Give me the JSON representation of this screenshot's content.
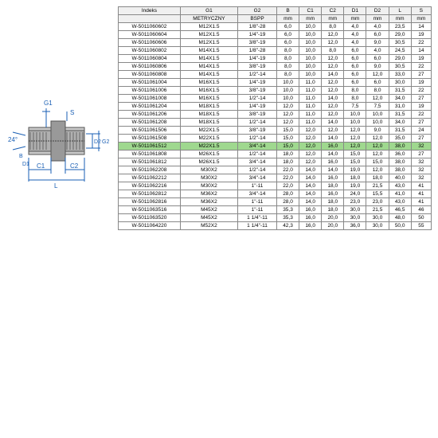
{
  "table": {
    "headers": [
      "Indeks",
      "G1",
      "G2",
      "B",
      "C1",
      "C2",
      "D1",
      "D2",
      "L",
      "S"
    ],
    "subheaders": [
      "",
      "METRYCZNY",
      "BSPP",
      "mm",
      "mm",
      "mm",
      "mm",
      "mm",
      "mm",
      "mm"
    ],
    "highlight_index": 15,
    "rows": [
      [
        "W-5011060602",
        "M12X1.5",
        "1/8\"-28",
        "6,0",
        "10,0",
        "8,0",
        "4,0",
        "4,0",
        "23,5",
        "14"
      ],
      [
        "W-5011060604",
        "M12X1.5",
        "1/4\"-19",
        "6,0",
        "10,0",
        "12,0",
        "4,0",
        "6,0",
        "29,0",
        "19"
      ],
      [
        "W-5011060606",
        "M12X1.5",
        "3/8\"-19",
        "6,0",
        "10,0",
        "12,0",
        "4,0",
        "9,0",
        "30,5",
        "22"
      ],
      [
        "W-5011060802",
        "M14X1.5",
        "1/8\"-28",
        "8,0",
        "10,0",
        "8,0",
        "6,0",
        "4,0",
        "24,5",
        "14"
      ],
      [
        "W-5011060804",
        "M14X1.5",
        "1/4\"-19",
        "8,0",
        "10,0",
        "12,0",
        "6,0",
        "6,0",
        "29,0",
        "19"
      ],
      [
        "W-5011060806",
        "M14X1.5",
        "3/8\"-19",
        "8,0",
        "10,0",
        "12,0",
        "6,0",
        "9,0",
        "30,5",
        "22"
      ],
      [
        "W-5011060808",
        "M14X1.5",
        "1/2\"-14",
        "8,0",
        "10,0",
        "14,0",
        "6,0",
        "12,0",
        "33,0",
        "27"
      ],
      [
        "W-5011061004",
        "M16X1.5",
        "1/4\"-19",
        "10,0",
        "11,0",
        "12,0",
        "6,0",
        "6,0",
        "30,0",
        "19"
      ],
      [
        "W-5011061006",
        "M16X1.5",
        "3/8\"-19",
        "10,0",
        "11,0",
        "12,0",
        "8,0",
        "8,0",
        "31,5",
        "22"
      ],
      [
        "W-5011061008",
        "M16X1.5",
        "1/2\"-14",
        "10,0",
        "11,0",
        "14,0",
        "8,0",
        "12,0",
        "34,0",
        "27"
      ],
      [
        "W-5011061204",
        "M18X1.5",
        "1/4\"-19",
        "12,0",
        "11,0",
        "12,0",
        "7,5",
        "7,5",
        "31,0",
        "19"
      ],
      [
        "W-5011061206",
        "M18X1.5",
        "3/8\"-19",
        "12,0",
        "11,0",
        "12,0",
        "10,0",
        "10,0",
        "31,5",
        "22"
      ],
      [
        "W-5011061208",
        "M18X1.5",
        "1/2\"-14",
        "12,0",
        "11,0",
        "14,0",
        "10,0",
        "10,0",
        "34,0",
        "27"
      ],
      [
        "W-5011061506",
        "M22X1.5",
        "3/8\"-19",
        "15,0",
        "12,0",
        "12,0",
        "12,0",
        "9,0",
        "31,5",
        "24"
      ],
      [
        "W-5011061508",
        "M22X1.5",
        "1/2\"-14",
        "15,0",
        "12,0",
        "14,0",
        "12,0",
        "12,0",
        "35,0",
        "27"
      ],
      [
        "W-5011061512",
        "M22X1.5",
        "3/4\"-14",
        "15,0",
        "12,0",
        "16,0",
        "12,0",
        "12,0",
        "38,0",
        "32"
      ],
      [
        "W-5011061808",
        "M26X1.5",
        "1/2\"-14",
        "18,0",
        "12,0",
        "14,0",
        "15,0",
        "12,0",
        "36,0",
        "27"
      ],
      [
        "W-5011061812",
        "M26X1.5",
        "3/4\"-14",
        "18,0",
        "12,0",
        "16,0",
        "15,0",
        "15,0",
        "38,0",
        "32"
      ],
      [
        "W-5011062208",
        "M30X2",
        "1/2\"-14",
        "22,0",
        "14,0",
        "14,0",
        "19,0",
        "12,0",
        "38,0",
        "32"
      ],
      [
        "W-5011062212",
        "M30X2",
        "3/4\"-14",
        "22,0",
        "14,0",
        "16,0",
        "18,0",
        "18,0",
        "40,0",
        "32"
      ],
      [
        "W-5011062216",
        "M30X2",
        "1\"-11",
        "22,0",
        "14,0",
        "18,0",
        "19,0",
        "21,5",
        "43,0",
        "41"
      ],
      [
        "W-5011062812",
        "M36X2",
        "3/4\"-14",
        "28,0",
        "14,0",
        "16,0",
        "24,0",
        "15,5",
        "41,0",
        "41"
      ],
      [
        "W-5011062816",
        "M36X2",
        "1\"-11",
        "28,0",
        "14,0",
        "18,0",
        "23,0",
        "23,0",
        "43,0",
        "41"
      ],
      [
        "W-5011063516",
        "M45X2",
        "1\"-11",
        "35,3",
        "16,0",
        "18,0",
        "30,0",
        "21,5",
        "46,5",
        "46"
      ],
      [
        "W-5011063520",
        "M45X2",
        "1 1/4\"-11",
        "35,3",
        "16,0",
        "20,0",
        "30,0",
        "30,0",
        "48,0",
        "50"
      ],
      [
        "W-5011064220",
        "M52X2",
        "1 1/4\"-11",
        "42,3",
        "16,0",
        "20,0",
        "36,0",
        "30,0",
        "50,0",
        "55"
      ]
    ]
  },
  "diagram": {
    "labels": {
      "g1": "G1",
      "s": "S",
      "angle": "24°",
      "b": "B",
      "d1": "D1",
      "c1": "C1",
      "c2": "C2",
      "d2": "D2",
      "g2": "G2",
      "l": "L"
    }
  }
}
